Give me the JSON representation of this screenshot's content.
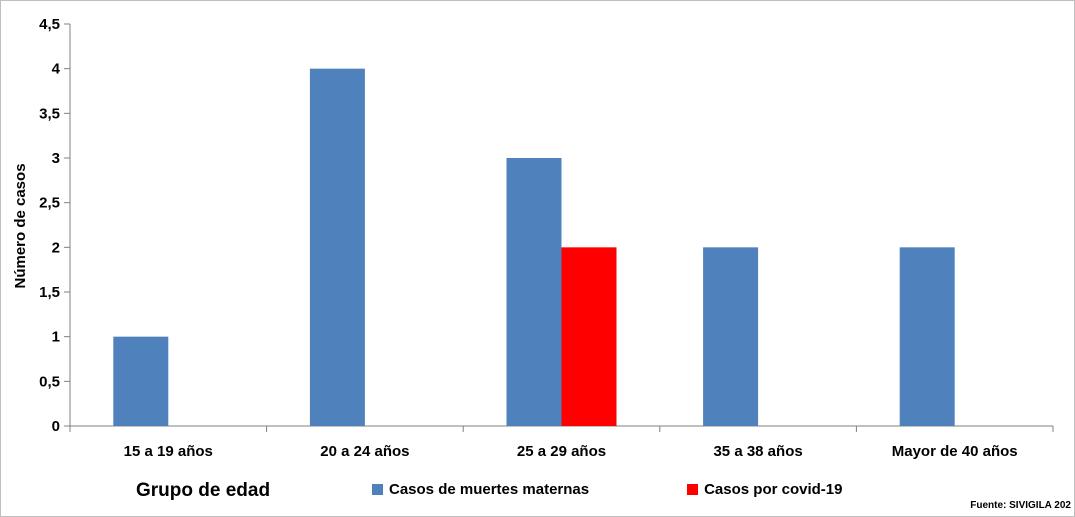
{
  "chart_data": {
    "type": "bar",
    "categories": [
      "15 a 19 años",
      "20 a 24 años",
      "25 a 29 años",
      "35 a 38 años",
      "Mayor de 40 años"
    ],
    "series": [
      {
        "name": "Casos de muertes maternas",
        "color": "#4f81bd",
        "values": [
          1,
          4,
          3,
          2,
          2
        ]
      },
      {
        "name": "Casos por covid-19",
        "color": "#ff0000",
        "values": [
          0,
          0,
          2,
          0,
          0
        ]
      }
    ],
    "xlabel": "Grupo de edad",
    "ylabel": "Número de casos",
    "ylim": [
      0,
      4.5
    ],
    "yticks": [
      "0",
      "0,5",
      "1",
      "1,5",
      "2",
      "2,5",
      "3",
      "3,5",
      "4",
      "4,5"
    ],
    "grid": false,
    "legend_position": "bottom",
    "source": "Fuente: SIVIGILA 202"
  }
}
